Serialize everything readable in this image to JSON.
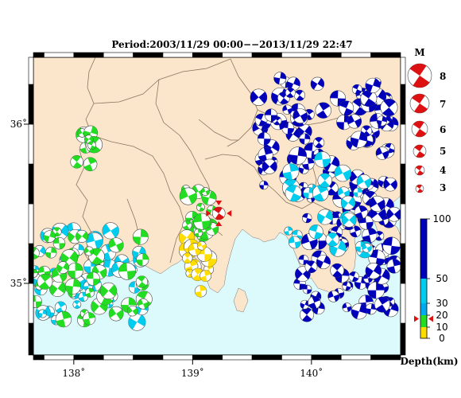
{
  "title": "Period:2003/11/29 00:00−−2013/11/29 22:47",
  "axes": {
    "lon_ticks": [
      {
        "value": 138,
        "label": "138˚"
      },
      {
        "value": 139,
        "label": "139˚"
      },
      {
        "value": 140,
        "label": "140˚"
      }
    ],
    "lat_ticks": [
      {
        "value": 36,
        "label": "36˚"
      },
      {
        "value": 35,
        "label": "35˚"
      }
    ],
    "lon_range": [
      137.66,
      140.75
    ],
    "lat_range": [
      34.55,
      36.42
    ]
  },
  "magnitude_legend": {
    "title": "M",
    "items": [
      {
        "m": 8,
        "label": "8"
      },
      {
        "m": 7,
        "label": "7"
      },
      {
        "m": 6,
        "label": "6"
      },
      {
        "m": 5,
        "label": "5"
      },
      {
        "m": 4,
        "label": "4"
      },
      {
        "m": 3,
        "label": "3"
      }
    ]
  },
  "depth_legend": {
    "title": "Depth(km)",
    "ticks": [
      {
        "value": 100,
        "label": "100"
      },
      {
        "value": 50,
        "label": "50"
      },
      {
        "value": 30,
        "label": "30"
      },
      {
        "value": 20,
        "label": "20"
      },
      {
        "value": 10,
        "label": "10"
      },
      {
        "value": 0,
        "label": "0"
      }
    ],
    "bands": [
      {
        "from": 0,
        "to": 10,
        "color": "#ffdd00"
      },
      {
        "from": 10,
        "to": 20,
        "color": "#22dd22"
      },
      {
        "from": 20,
        "to": 30,
        "color": "#00aaee"
      },
      {
        "from": 30,
        "to": 50,
        "color": "#00ccee"
      },
      {
        "from": 50,
        "to": 100,
        "color": "#0000bb"
      }
    ],
    "marker_depth": 17
  },
  "colors": {
    "land": "#fbe6cc",
    "sea": "#dcf9fb",
    "border": "#8a7560",
    "frame": "#000000",
    "marker": "#dd1111"
  },
  "main_event": {
    "lon": 139.22,
    "lat": 35.44,
    "m": 5.6,
    "depth": 17
  },
  "chart_data": {
    "type": "scatter",
    "title": "Period:2003/11/29 00:00−−2013/11/29 22:47",
    "xlabel": "",
    "ylabel": "",
    "xlim": [
      137.66,
      140.75
    ],
    "ylim": [
      34.55,
      36.42
    ],
    "size_legend_title": "M",
    "color_legend_title": "Depth(km)",
    "groups": [
      {
        "depth_class": "deep",
        "color": "#0000bb",
        "lon_range": [
          139.9,
          140.7
        ],
        "lat_range": [
          34.8,
          36.3
        ],
        "count": 140
      },
      {
        "depth_class": "deep",
        "color": "#0000bb",
        "lon_range": [
          139.55,
          139.95
        ],
        "lat_range": [
          35.55,
          36.3
        ],
        "count": 40
      },
      {
        "depth_class": "intermediate",
        "color": "#00ccee",
        "lon_range": [
          137.66,
          138.6
        ],
        "lat_range": [
          34.75,
          35.35
        ],
        "count": 45
      },
      {
        "depth_class": "intermediate",
        "color": "#00ccee",
        "lon_range": [
          139.8,
          140.5
        ],
        "lat_range": [
          35.2,
          35.8
        ],
        "count": 25
      },
      {
        "depth_class": "shallow",
        "color": "#22dd22",
        "lon_range": [
          137.66,
          138.6
        ],
        "lat_range": [
          34.75,
          35.35
        ],
        "count": 45
      },
      {
        "depth_class": "shallow",
        "color": "#22dd22",
        "lon_range": [
          137.9,
          138.2
        ],
        "lat_range": [
          35.7,
          35.95
        ],
        "count": 10
      },
      {
        "depth_class": "shallow",
        "color": "#22dd22",
        "lon_range": [
          138.9,
          139.2
        ],
        "lat_range": [
          35.3,
          35.6
        ],
        "count": 18
      },
      {
        "depth_class": "very_shallow",
        "color": "#ffdd00",
        "lon_range": [
          138.95,
          139.15
        ],
        "lat_range": [
          34.95,
          35.3
        ],
        "count": 15
      }
    ]
  }
}
